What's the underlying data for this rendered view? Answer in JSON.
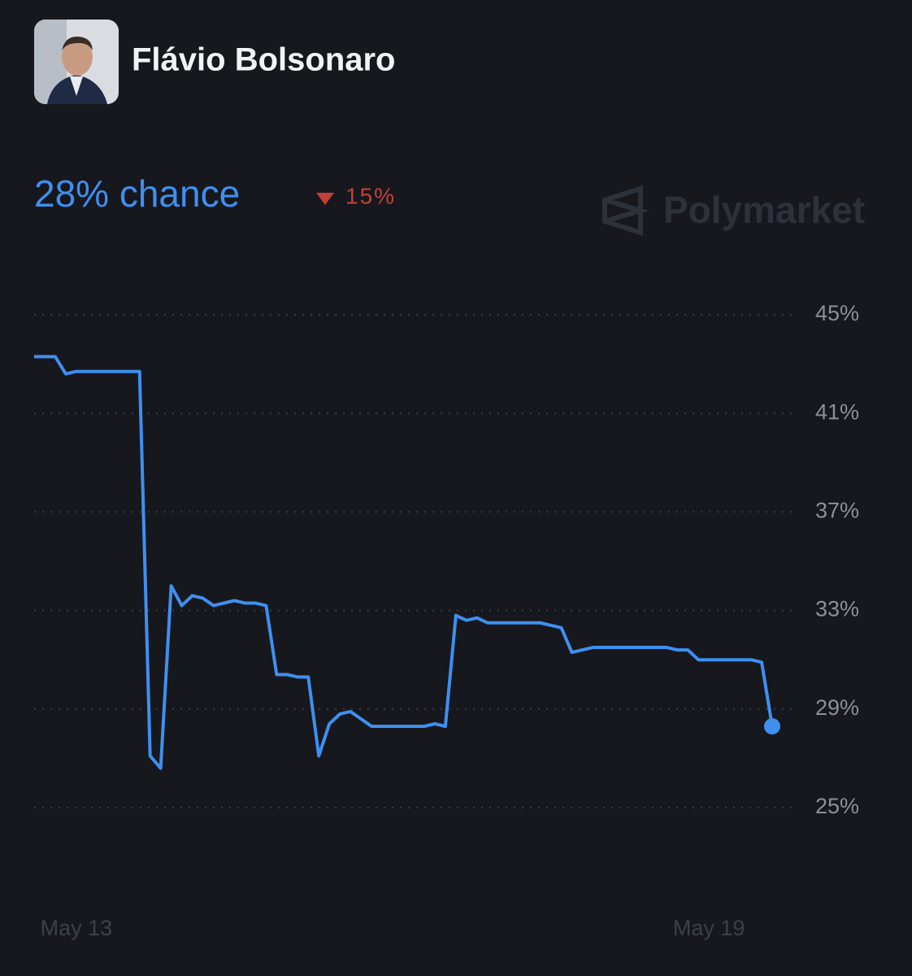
{
  "header": {
    "name": "Flávio Bolsonaro",
    "chance": "28% chance",
    "change": "15%",
    "brand": "Polymarket"
  },
  "chart_data": {
    "type": "line",
    "categories": [
      null,
      null,
      null,
      null,
      "May 13",
      null,
      null,
      null,
      null,
      null,
      null,
      null,
      null,
      null,
      null,
      null,
      null,
      null,
      null,
      null,
      null,
      null,
      null,
      null,
      null,
      null,
      null,
      null,
      null,
      null,
      null,
      null,
      null,
      null,
      null,
      null,
      null,
      null,
      null,
      null,
      null,
      null,
      null,
      null,
      null,
      null,
      null,
      null,
      null,
      null,
      null,
      null,
      null,
      null,
      null,
      null,
      null,
      null,
      null,
      null,
      null,
      null,
      null,
      null,
      "May 19",
      null,
      null,
      null,
      null,
      null,
      null
    ],
    "series": [
      {
        "color": "#3f8ff0",
        "values": [
          43.3,
          43.3,
          43.3,
          42.6,
          42.7,
          42.7,
          42.7,
          42.7,
          42.7,
          42.7,
          42.7,
          27.1,
          26.6,
          34.0,
          33.2,
          33.6,
          33.5,
          33.2,
          33.3,
          33.4,
          33.3,
          33.3,
          33.2,
          30.4,
          30.4,
          30.3,
          30.3,
          27.1,
          28.4,
          28.8,
          28.9,
          28.6,
          28.3,
          28.3,
          28.3,
          28.3,
          28.3,
          28.3,
          28.4,
          28.3,
          32.8,
          32.6,
          32.7,
          32.5,
          32.5,
          32.5,
          32.5,
          32.5,
          32.5,
          32.4,
          32.3,
          31.3,
          31.4,
          31.5,
          31.5,
          31.5,
          31.5,
          31.5,
          31.5,
          31.5,
          31.5,
          31.4,
          31.4,
          31.0,
          31.0,
          31.0,
          31.0,
          31.0,
          31.0,
          30.9,
          28.3
        ]
      }
    ],
    "ylim": [
      25,
      45
    ],
    "yticks": [
      {
        "value": 25,
        "label": "25%"
      },
      {
        "value": 29,
        "label": "29%"
      },
      {
        "value": 33,
        "label": "33%"
      },
      {
        "value": 37,
        "label": "37%"
      },
      {
        "value": 41,
        "label": "41%"
      },
      {
        "value": 45,
        "label": "45%"
      }
    ],
    "grid": true
  }
}
